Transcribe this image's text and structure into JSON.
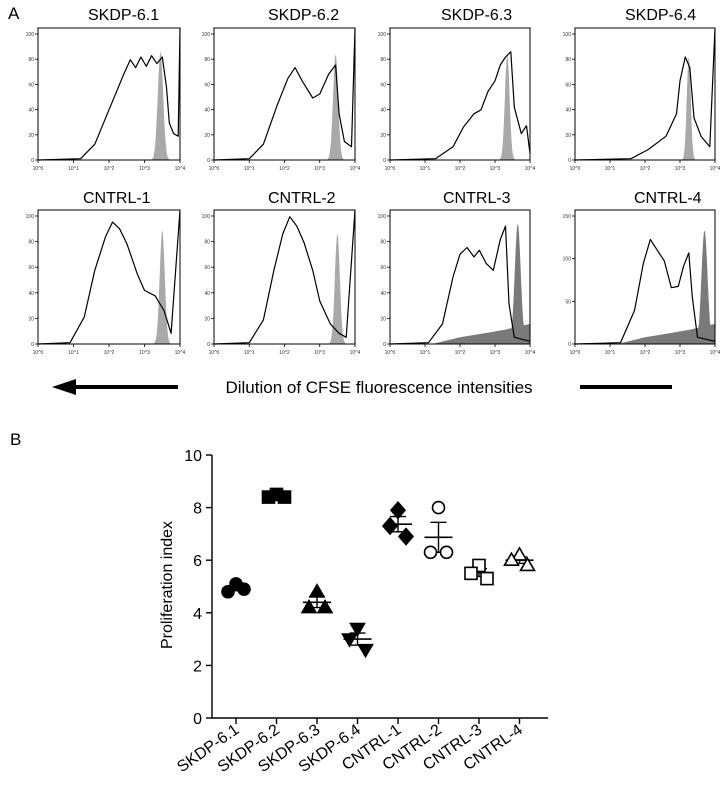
{
  "panels": {
    "a_label": "A",
    "b_label": "B"
  },
  "histograms": [
    {
      "title": "SKDP-6.1",
      "ymax": 100
    },
    {
      "title": "SKDP-6.2",
      "ymax": 100
    },
    {
      "title": "SKDP-6.3",
      "ymax": 100
    },
    {
      "title": "SKDP-6.4",
      "ymax": 100
    },
    {
      "title": "CNTRL-1",
      "ymax": 100
    },
    {
      "title": "CNTRL-2",
      "ymax": 100
    },
    {
      "title": "CNTRL-3",
      "ymax": 100
    },
    {
      "title": "CNTRL-4",
      "ymax": 150
    }
  ],
  "hist_y_ticks": {
    "100": [
      "0",
      "20",
      "40",
      "60",
      "80",
      "100"
    ],
    "150": [
      "0",
      "50",
      "100",
      "150"
    ]
  },
  "hist_x_ticks": [
    "10^0",
    "10^1",
    "10^2",
    "10^3",
    "10^4"
  ],
  "caption": "Dilution of CFSE fluorescence intensities",
  "chart_data": {
    "type": "scatter",
    "title": "",
    "xlabel": "",
    "ylabel": "Proliferation index",
    "ylim": [
      0,
      10
    ],
    "yticks": [
      "0",
      "2",
      "4",
      "6",
      "8",
      "10"
    ],
    "categories": [
      "SKDP-6.1",
      "SKDP-6.2",
      "SKDP-6.3",
      "SKDP-6.4",
      "CNTRL-1",
      "CNTRL-2",
      "CNTRL-3",
      "CNTRL-4"
    ],
    "series": [
      {
        "category": "SKDP-6.1",
        "marker": "circle-filled",
        "points": [
          5.1,
          4.8,
          4.9
        ],
        "mean": 4.93,
        "sem": 0.09
      },
      {
        "category": "SKDP-6.2",
        "marker": "square-filled",
        "points": [
          8.5,
          8.4,
          8.4
        ],
        "mean": 8.43,
        "sem": 0.03
      },
      {
        "category": "SKDP-6.3",
        "marker": "triangle-up-filled",
        "points": [
          4.8,
          4.2,
          4.2
        ],
        "mean": 4.4,
        "sem": 0.2
      },
      {
        "category": "SKDP-6.4",
        "marker": "triangle-down-filled",
        "points": [
          3.4,
          3.0,
          2.6
        ],
        "mean": 3.0,
        "sem": 0.23
      },
      {
        "category": "CNTRL-1",
        "marker": "diamond-filled",
        "points": [
          7.9,
          7.3,
          6.9
        ],
        "mean": 7.37,
        "sem": 0.29
      },
      {
        "category": "CNTRL-2",
        "marker": "circle-open",
        "points": [
          8.0,
          6.3,
          6.3
        ],
        "mean": 6.87,
        "sem": 0.57
      },
      {
        "category": "CNTRL-3",
        "marker": "square-open",
        "points": [
          5.8,
          5.5,
          5.3
        ],
        "mean": 5.53,
        "sem": 0.15
      },
      {
        "category": "CNTRL-4",
        "marker": "triangle-up-open",
        "points": [
          6.2,
          6.0,
          5.8
        ],
        "mean": 6.0,
        "sem": 0.12
      }
    ]
  },
  "colors": {
    "fill": "#a9a9a9",
    "line": "#000000",
    "dark_fill": "#7a7a7a"
  }
}
